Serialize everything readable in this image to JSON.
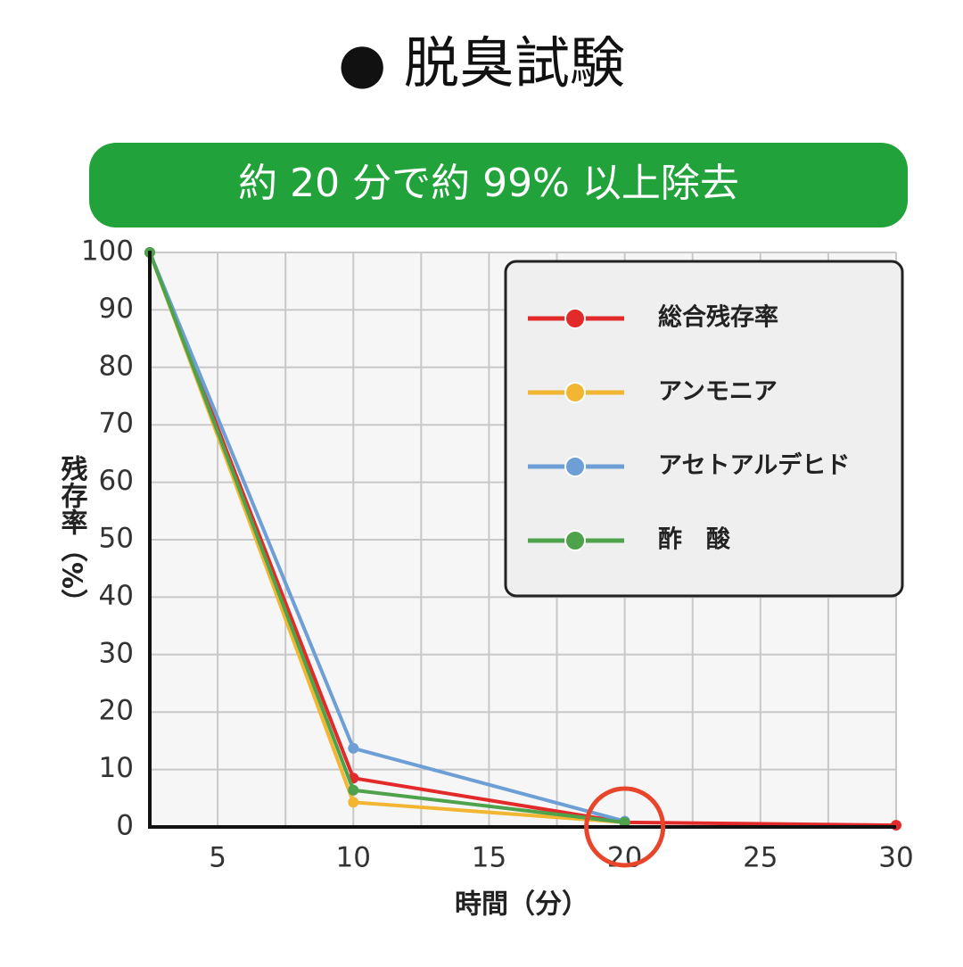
{
  "chart_data": {
    "type": "line",
    "title": "● 脱臭試験",
    "subtitle": "約 20 分で約 99% 以上除去",
    "x_label": "時間（分）",
    "y_label": "残存率（%）",
    "x": [
      2.5,
      10,
      20,
      30
    ],
    "series": [
      {
        "name": "総合残存率",
        "color": "#e32a2a",
        "values": [
          100,
          8.5,
          0.8,
          0.3
        ]
      },
      {
        "name": "アンモニア",
        "color": "#f2b632",
        "values": [
          100,
          4.3,
          0.8,
          null
        ]
      },
      {
        "name": "アセトアルデヒド",
        "color": "#6d9fd6",
        "values": [
          100,
          13.7,
          1.0,
          null
        ]
      },
      {
        "name": "酢　酸",
        "color": "#4ea24c",
        "values": [
          100,
          6.4,
          0.8,
          null
        ]
      }
    ],
    "xlim": [
      2.5,
      30
    ],
    "xticks": [
      5,
      10,
      15,
      20,
      25,
      30
    ],
    "x_gridlines": [
      5,
      7.5,
      10,
      12.5,
      15,
      17.5,
      20,
      22.5,
      25,
      27.5,
      30
    ],
    "ylim": [
      0,
      100
    ],
    "yticks": [
      0,
      10,
      20,
      30,
      40,
      50,
      60,
      70,
      80,
      90,
      100
    ],
    "grid": true,
    "highlight_x": 20,
    "legend": "upper right"
  }
}
